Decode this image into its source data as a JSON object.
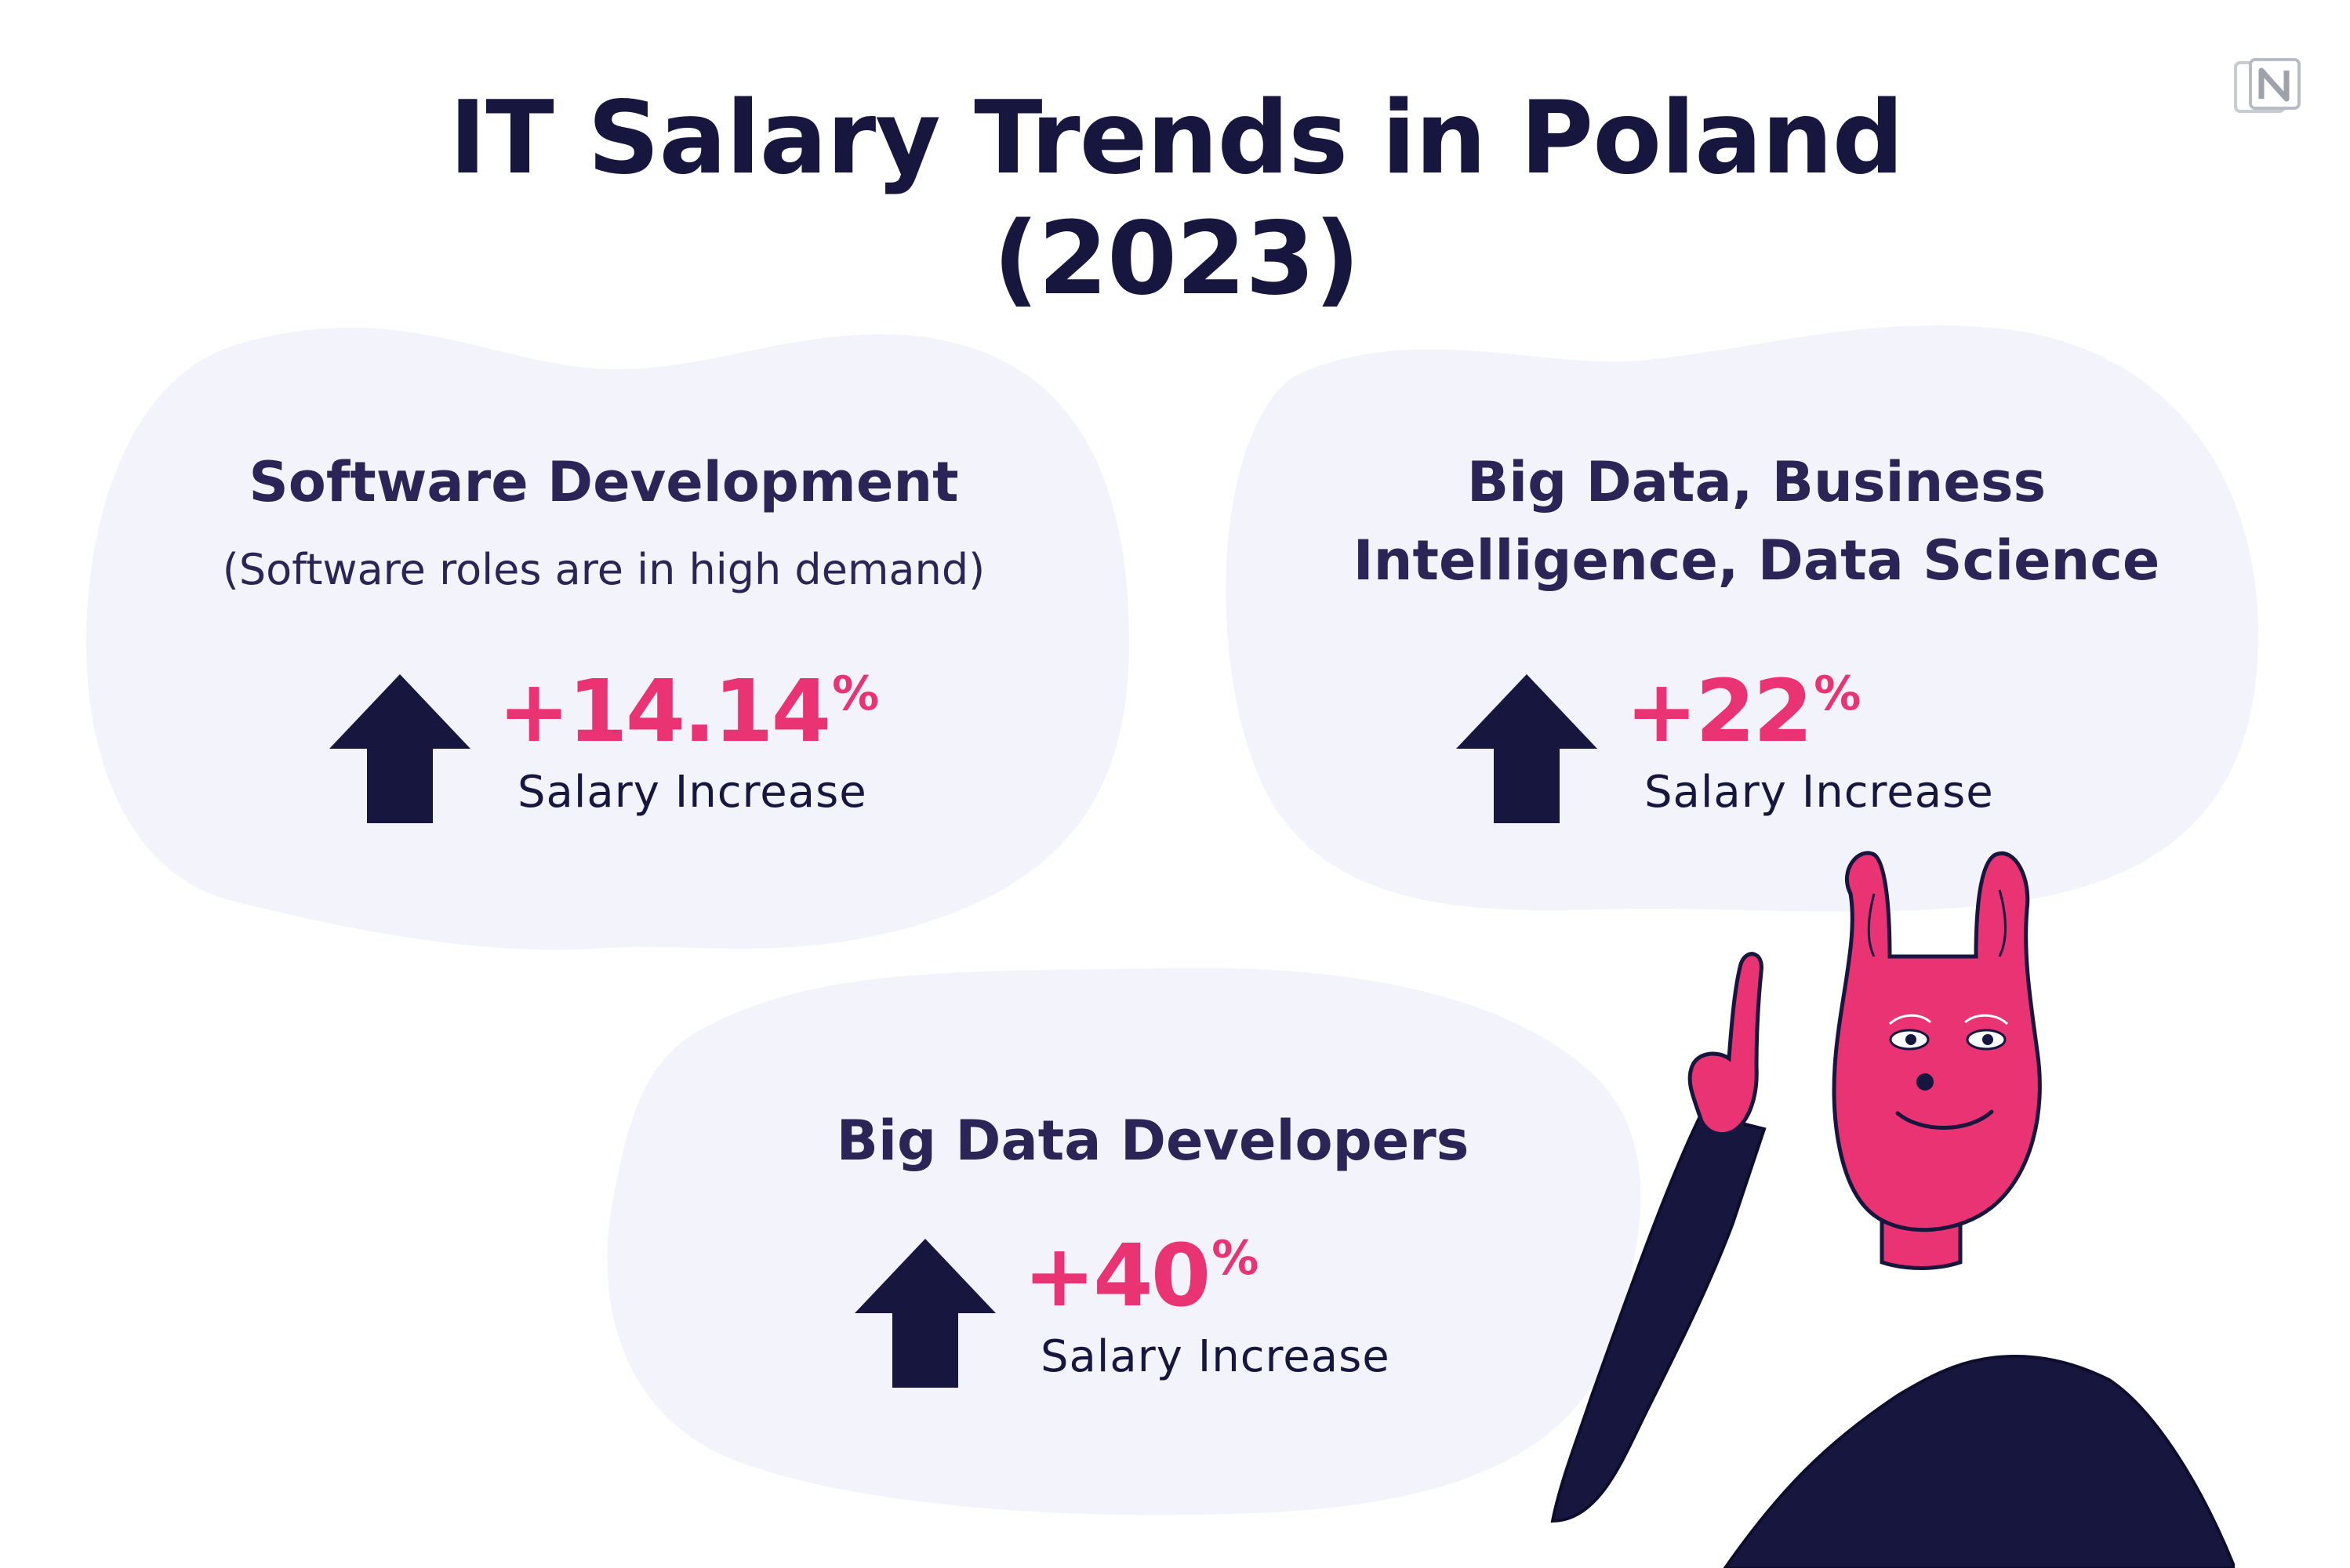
{
  "title": {
    "line1": "IT Salary Trends in Poland",
    "line2": "(2023)"
  },
  "cards": [
    {
      "title_line1": "Software Development",
      "subtitle": "(Software roles are in high demand)",
      "value": "+14.14",
      "unit": "%",
      "label": "Salary Increase"
    },
    {
      "title_line1": "Big Data, Business",
      "title_line2": "Intelligence, Data Science",
      "value": "+22",
      "unit": "%",
      "label": "Salary Increase"
    },
    {
      "title_line1": "Big Data Developers",
      "value": "+40",
      "unit": "%",
      "label": "Salary Increase"
    }
  ],
  "colors": {
    "navy": "#16163f",
    "accent": "#ea3372",
    "blob": "#f3f4fb"
  },
  "icons": [
    "up-arrow-icon",
    "brand-logo-icon",
    "pointing-character-illustration"
  ]
}
